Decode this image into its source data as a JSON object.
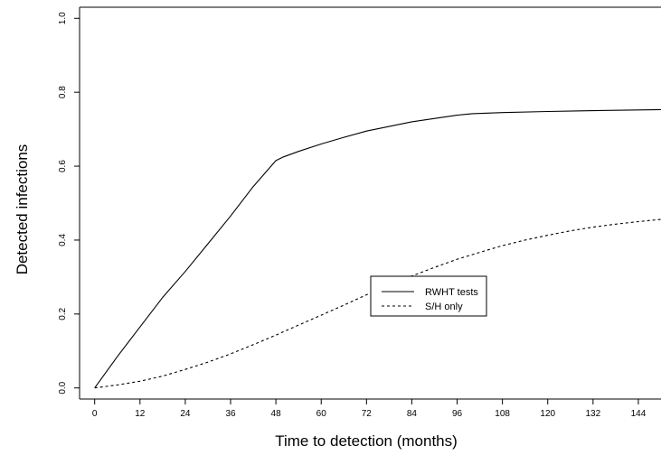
{
  "chart_data": {
    "type": "line",
    "title": "",
    "xlabel": "Time to detection (months)",
    "ylabel": "Detected infections",
    "xlim": [
      -4,
      150
    ],
    "ylim": [
      -0.03,
      1.03
    ],
    "x_ticks": [
      0,
      12,
      24,
      36,
      48,
      60,
      72,
      84,
      96,
      108,
      120,
      132,
      144
    ],
    "y_ticks": [
      0.0,
      0.2,
      0.4,
      0.6,
      0.8,
      1.0
    ],
    "x_tick_labels": [
      "0",
      "12",
      "24",
      "36",
      "48",
      "60",
      "72",
      "84",
      "96",
      "108",
      "120",
      "132",
      "144"
    ],
    "y_tick_labels": [
      "0.0",
      "0.2",
      "0.4",
      "0.6",
      "0.8",
      "1.0"
    ],
    "grid": false,
    "legend_position": "center",
    "series": [
      {
        "name": "RWHT tests",
        "line_style": "solid",
        "x": [
          0,
          6,
          12,
          18,
          24,
          30,
          36,
          42,
          48,
          50,
          54,
          60,
          66,
          72,
          84,
          96,
          100,
          108,
          120,
          132,
          144,
          150
        ],
        "y": [
          0.0,
          0.085,
          0.165,
          0.245,
          0.315,
          0.39,
          0.465,
          0.545,
          0.615,
          0.625,
          0.64,
          0.66,
          0.678,
          0.695,
          0.72,
          0.738,
          0.742,
          0.745,
          0.748,
          0.75,
          0.752,
          0.753
        ]
      },
      {
        "name": "S/H only",
        "line_style": "dashed",
        "x": [
          0,
          6,
          12,
          18,
          24,
          30,
          36,
          42,
          48,
          54,
          60,
          66,
          72,
          78,
          84,
          90,
          96,
          102,
          108,
          114,
          120,
          126,
          132,
          138,
          144,
          150
        ],
        "y": [
          0.0,
          0.008,
          0.018,
          0.032,
          0.05,
          0.07,
          0.092,
          0.117,
          0.143,
          0.17,
          0.197,
          0.224,
          0.252,
          0.278,
          0.303,
          0.326,
          0.348,
          0.367,
          0.385,
          0.4,
          0.413,
          0.425,
          0.435,
          0.443,
          0.45,
          0.456
        ]
      }
    ]
  }
}
